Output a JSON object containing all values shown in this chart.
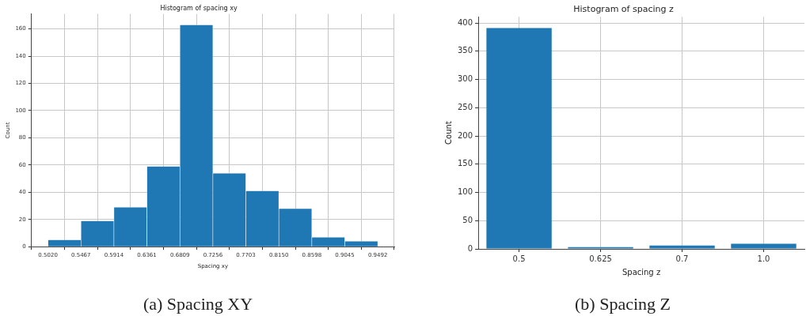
{
  "chart_data": [
    {
      "type": "histogram",
      "title": "Histogram of spacing xy",
      "xlabel": "Spacing xy",
      "ylabel": "Count",
      "bins": [
        0.502,
        0.5467,
        0.5914,
        0.6361,
        0.6809,
        0.7256,
        0.7703,
        0.815,
        0.8598,
        0.9045,
        0.9492
      ],
      "values": [
        5,
        19,
        29,
        59,
        163,
        54,
        41,
        28,
        7,
        4
      ],
      "color": "#1f77b4",
      "xlim": [
        0.4796,
        0.9716
      ],
      "xticks": [
        {
          "value": 0.502,
          "label": "0.5020"
        },
        {
          "value": 0.5467,
          "label": "0.5467"
        },
        {
          "value": 0.5914,
          "label": "0.5914"
        },
        {
          "value": 0.6361,
          "label": "0.6361"
        },
        {
          "value": 0.6809,
          "label": "0.6809"
        },
        {
          "value": 0.7256,
          "label": "0.7256"
        },
        {
          "value": 0.7703,
          "label": "0.7703"
        },
        {
          "value": 0.815,
          "label": "0.8150"
        },
        {
          "value": 0.8598,
          "label": "0.8598"
        },
        {
          "value": 0.9045,
          "label": "0.9045"
        },
        {
          "value": 0.9492,
          "label": "0.9492"
        }
      ],
      "ylim": [
        0,
        171
      ],
      "yticks": [
        0,
        20,
        40,
        60,
        80,
        100,
        120,
        140,
        160
      ],
      "grid": true,
      "annotations": [
        "(a) Spacing XY"
      ]
    },
    {
      "type": "bar",
      "title": "Histogram of spacing z",
      "xlabel": "Spacing z",
      "ylabel": "Count",
      "categories": [
        "0.5",
        "0.625",
        "0.7",
        "1.0"
      ],
      "values": [
        391,
        3,
        6,
        9
      ],
      "color": "#1f77b4",
      "ylim": [
        0,
        411
      ],
      "yticks": [
        0,
        50,
        100,
        150,
        200,
        250,
        300,
        350,
        400
      ],
      "grid": true,
      "annotations": [
        "(b) Spacing Z"
      ]
    }
  ]
}
